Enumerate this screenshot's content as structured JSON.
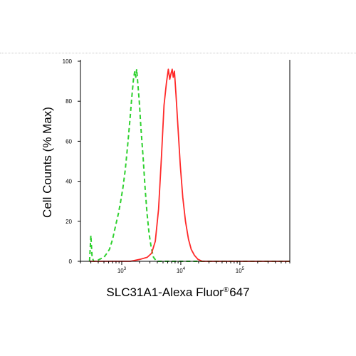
{
  "chart_data": {
    "type": "line",
    "title": "",
    "xlabel": {
      "prefix": "SLC31A1-Alexa Fluor",
      "superscript": "®",
      "suffix": "647"
    },
    "ylabel": "Cell Counts (% Max)",
    "x_scale": "log",
    "xlim": [
      200,
      700000
    ],
    "ylim": [
      0,
      100
    ],
    "x_ticks": [
      {
        "value": 1000,
        "base": "10",
        "exp": "3"
      },
      {
        "value": 10000,
        "base": "10",
        "exp": "4"
      },
      {
        "value": 100000,
        "base": "10",
        "exp": "5"
      }
    ],
    "y_ticks": [
      0,
      20,
      40,
      60,
      80,
      100
    ],
    "grid": false,
    "legend": "none",
    "series": [
      {
        "color": "#2fd12f",
        "style": "dashed",
        "points": [
          [
            285,
            0
          ],
          [
            300,
            13
          ],
          [
            315,
            2
          ],
          [
            335,
            0
          ],
          [
            370,
            0
          ],
          [
            420,
            1
          ],
          [
            500,
            2
          ],
          [
            560,
            4
          ],
          [
            620,
            6
          ],
          [
            700,
            11
          ],
          [
            790,
            18
          ],
          [
            880,
            24
          ],
          [
            960,
            30
          ],
          [
            1050,
            37
          ],
          [
            1150,
            46
          ],
          [
            1260,
            58
          ],
          [
            1370,
            70
          ],
          [
            1480,
            82
          ],
          [
            1580,
            91
          ],
          [
            1660,
            95
          ],
          [
            1730,
            92
          ],
          [
            1790,
            96
          ],
          [
            1870,
            89
          ],
          [
            1980,
            80
          ],
          [
            2120,
            66
          ],
          [
            2300,
            52
          ],
          [
            2480,
            37
          ],
          [
            2680,
            24
          ],
          [
            2900,
            14
          ],
          [
            3150,
            7
          ],
          [
            3450,
            2
          ],
          [
            3900,
            0
          ],
          [
            6500,
            0
          ],
          [
            700000,
            0
          ]
        ]
      },
      {
        "color": "#ff2a2a",
        "style": "solid",
        "points": [
          [
            285,
            0
          ],
          [
            1400,
            0
          ],
          [
            2050,
            1
          ],
          [
            2700,
            2
          ],
          [
            3200,
            4
          ],
          [
            3700,
            10
          ],
          [
            4200,
            26
          ],
          [
            4700,
            52
          ],
          [
            5200,
            78
          ],
          [
            5700,
            89
          ],
          [
            6150,
            96
          ],
          [
            6500,
            91
          ],
          [
            6850,
            94
          ],
          [
            7150,
            96
          ],
          [
            7450,
            92
          ],
          [
            7800,
            95
          ],
          [
            8300,
            83
          ],
          [
            9000,
            66
          ],
          [
            9800,
            48
          ],
          [
            10800,
            32
          ],
          [
            12000,
            20
          ],
          [
            13500,
            11
          ],
          [
            15000,
            6
          ],
          [
            17000,
            3
          ],
          [
            19500,
            1
          ],
          [
            23000,
            0
          ],
          [
            700000,
            0
          ]
        ]
      }
    ]
  }
}
